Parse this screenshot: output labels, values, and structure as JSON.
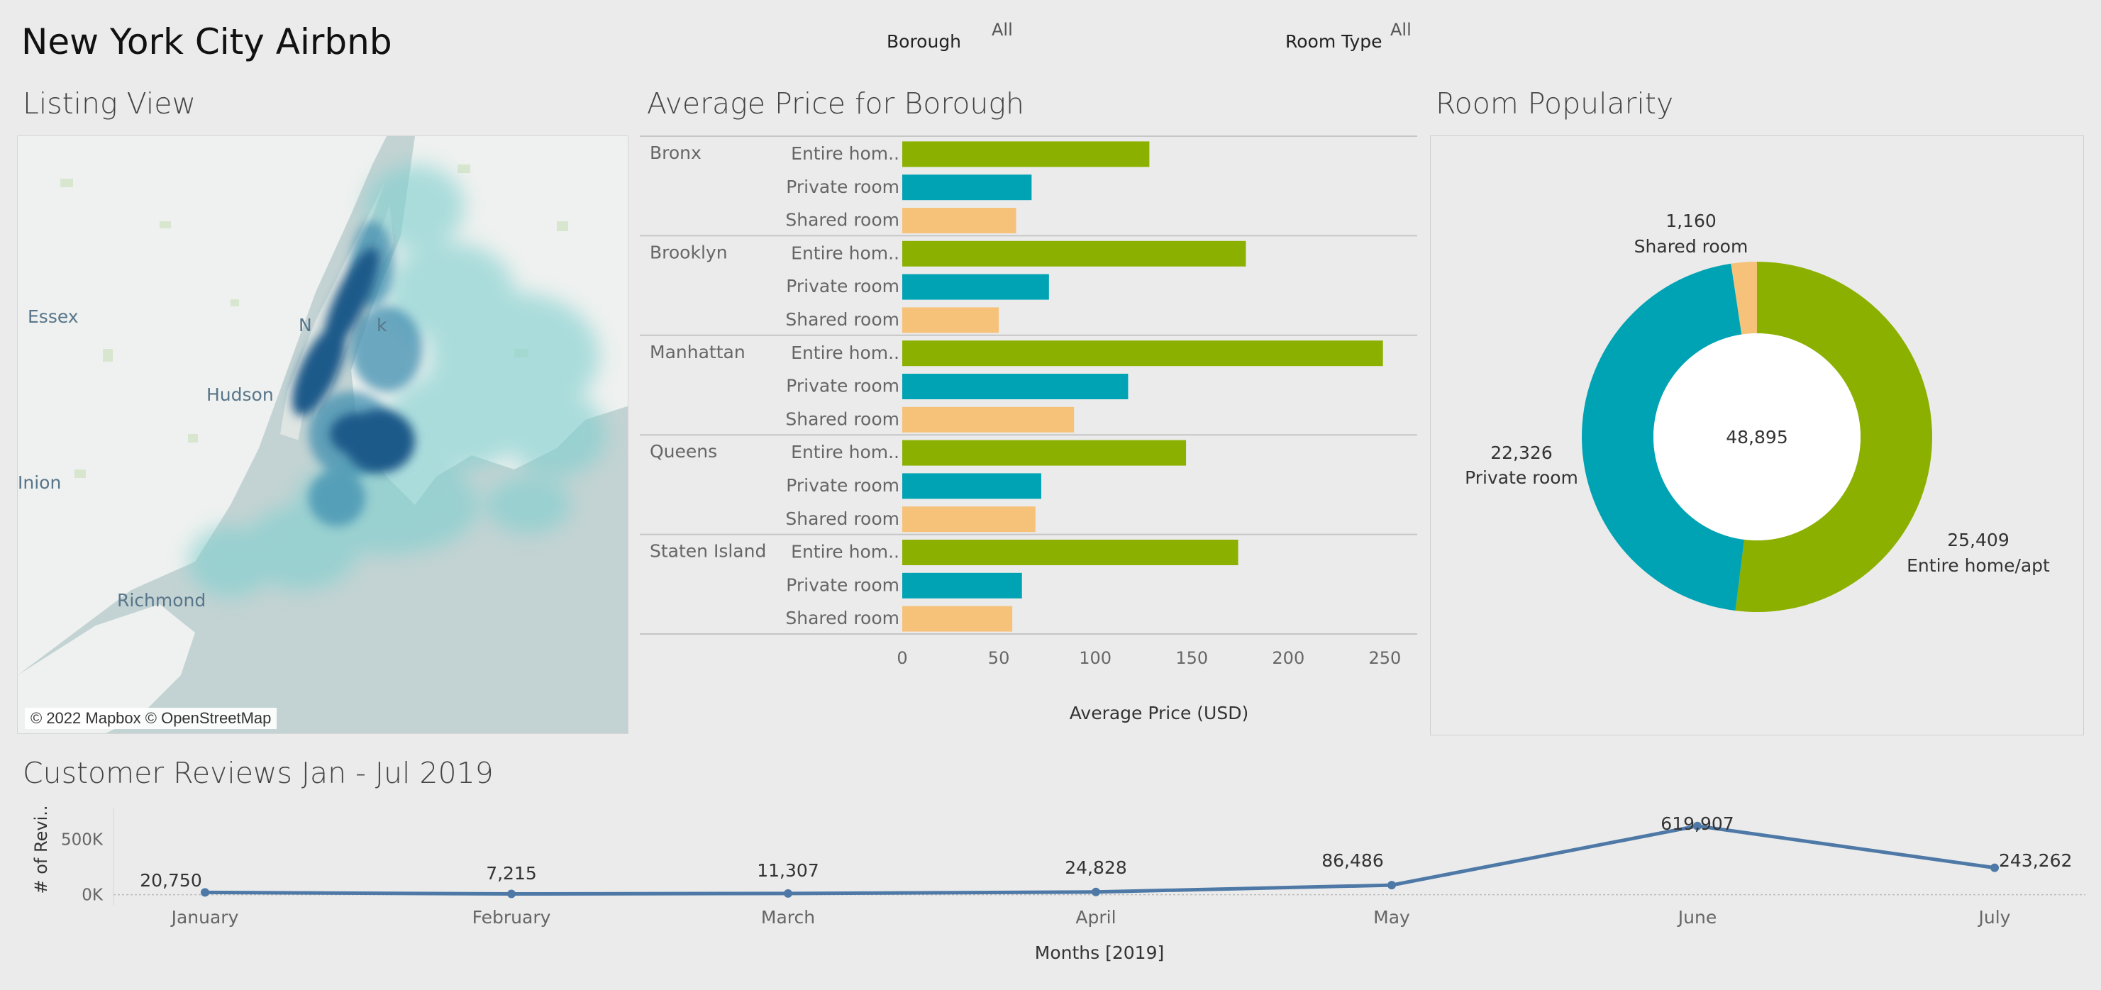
{
  "dashboard": {
    "title": "New York City Airbnb",
    "filters": [
      {
        "label": "Borough",
        "value": "All"
      },
      {
        "label": "Room Type",
        "value": "All"
      }
    ]
  },
  "sections": {
    "map_title": "Listing View",
    "bar_title": "Average Price for Borough",
    "donut_title": "Room Popularity",
    "line_title": "Customer Reviews Jan - Jul 2019"
  },
  "map": {
    "labels": [
      "Essex",
      "Hudson",
      "Richmond",
      "Inion",
      "N",
      "k"
    ],
    "attribution": "© 2022 Mapbox © OpenStreetMap"
  },
  "colors": {
    "entire": "#8cb000",
    "private": "#00a3b4",
    "shared": "#f6c27a",
    "line": "#4e79a7",
    "water": "#c3d3d3",
    "land": "#eef1ef"
  },
  "chart_data": [
    {
      "type": "bar",
      "title": "Average Price for Borough",
      "xlabel": "Average Price (USD)",
      "xlim": [
        0,
        255
      ],
      "xticks": [
        0,
        50,
        100,
        150,
        200,
        250
      ],
      "groups": [
        {
          "name": "Bronx",
          "rows": [
            {
              "label": "Entire hom..",
              "type": "entire",
              "value": 128
            },
            {
              "label": "Private room",
              "type": "private",
              "value": 67
            },
            {
              "label": "Shared room",
              "type": "shared",
              "value": 59
            }
          ]
        },
        {
          "name": "Brooklyn",
          "rows": [
            {
              "label": "Entire hom..",
              "type": "entire",
              "value": 178
            },
            {
              "label": "Private room",
              "type": "private",
              "value": 76
            },
            {
              "label": "Shared room",
              "type": "shared",
              "value": 50
            }
          ]
        },
        {
          "name": "Manhattan",
          "rows": [
            {
              "label": "Entire hom..",
              "type": "entire",
              "value": 249
            },
            {
              "label": "Private room",
              "type": "private",
              "value": 117
            },
            {
              "label": "Shared room",
              "type": "shared",
              "value": 89
            }
          ]
        },
        {
          "name": "Queens",
          "rows": [
            {
              "label": "Entire hom..",
              "type": "entire",
              "value": 147
            },
            {
              "label": "Private room",
              "type": "private",
              "value": 72
            },
            {
              "label": "Shared room",
              "type": "shared",
              "value": 69
            }
          ]
        },
        {
          "name": "Staten Island",
          "rows": [
            {
              "label": "Entire hom..",
              "type": "entire",
              "value": 174
            },
            {
              "label": "Private room",
              "type": "private",
              "value": 62
            },
            {
              "label": "Shared room",
              "type": "shared",
              "value": 57
            }
          ]
        }
      ]
    },
    {
      "type": "pie",
      "title": "Room Popularity",
      "center_label": "48,895",
      "slices": [
        {
          "name": "Entire home/apt",
          "value": 25409,
          "value_label": "25,409",
          "type": "entire"
        },
        {
          "name": "Private room",
          "value": 22326,
          "value_label": "22,326",
          "type": "private"
        },
        {
          "name": "Shared room",
          "value": 1160,
          "value_label": "1,160",
          "type": "shared"
        }
      ]
    },
    {
      "type": "line",
      "title": "Customer Reviews Jan - Jul 2019",
      "xlabel": "Months [2019]",
      "ylabel": "# of Revi..",
      "categories": [
        "January",
        "February",
        "March",
        "April",
        "May",
        "June",
        "July"
      ],
      "values": [
        20750,
        7215,
        11307,
        24828,
        86486,
        619907,
        243262
      ],
      "value_labels": [
        "20,750",
        "7,215",
        "11,307",
        "24,828",
        "86,486",
        "619,907",
        "243,262"
      ],
      "yticks": [
        {
          "value": 0,
          "label": "0K"
        },
        {
          "value": 500000,
          "label": "500K"
        }
      ],
      "ylim": [
        -15000,
        650000
      ]
    }
  ]
}
